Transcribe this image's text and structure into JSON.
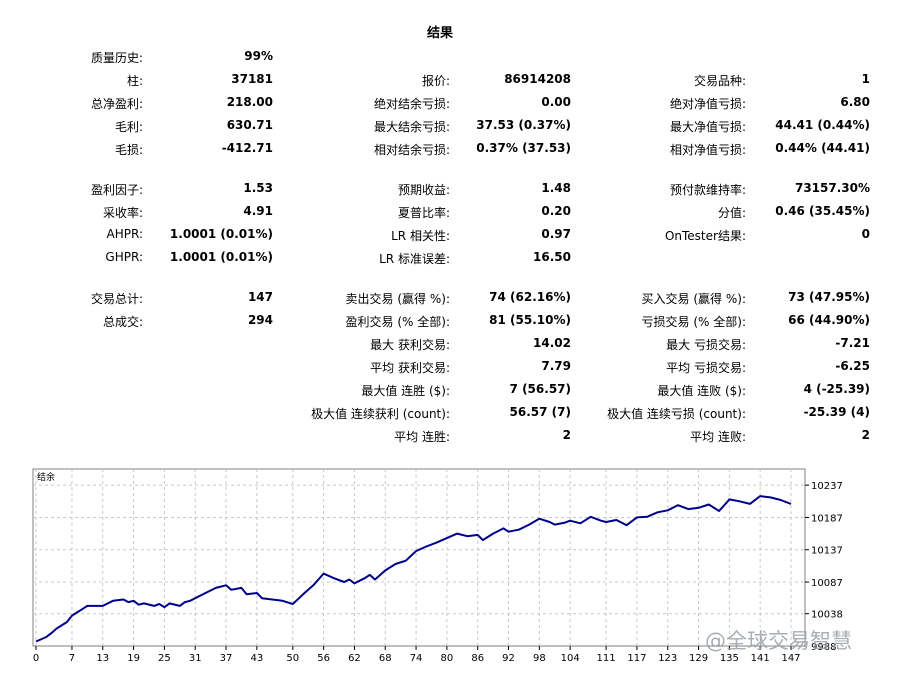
{
  "report": {
    "title": "结果",
    "stats": [
      {
        "label": "质量历史:",
        "value": "99%"
      },
      {
        "label": "柱:",
        "value": "37181"
      },
      {
        "label": "报价:",
        "value": "86914208"
      },
      {
        "label": "交易品种:",
        "value": "1"
      },
      {
        "label": "总净盈利:",
        "value": "218.00"
      },
      {
        "label": "绝对结余亏损:",
        "value": "0.00"
      },
      {
        "label": "绝对净值亏损:",
        "value": "6.80"
      },
      {
        "label": "毛利:",
        "value": "630.71"
      },
      {
        "label": "最大结余亏损:",
        "value": "37.53 (0.37%)"
      },
      {
        "label": "最大净值亏损:",
        "value": "44.41 (0.44%)"
      },
      {
        "label": "毛损:",
        "value": "-412.71"
      },
      {
        "label": "相对结余亏损:",
        "value": "0.37% (37.53)"
      },
      {
        "label": "相对净值亏损:",
        "value": "0.44% (44.41)"
      },
      {
        "label": "盈利因子:",
        "value": "1.53"
      },
      {
        "label": "预期收益:",
        "value": "1.48"
      },
      {
        "label": "预付款维持率:",
        "value": "73157.30%"
      },
      {
        "label": "采收率:",
        "value": "4.91"
      },
      {
        "label": "夏普比率:",
        "value": "0.20"
      },
      {
        "label": "分值:",
        "value": "0.46 (35.45%)"
      },
      {
        "label": "AHPR:",
        "value": "1.0001 (0.01%)"
      },
      {
        "label": "LR 相关性:",
        "value": "0.97"
      },
      {
        "label": "OnTester结果:",
        "value": "0"
      },
      {
        "label": "GHPR:",
        "value": "1.0001 (0.01%)"
      },
      {
        "label": "LR 标准误差:",
        "value": "16.50"
      },
      {
        "label": "交易总计:",
        "value": "147"
      },
      {
        "label": "卖出交易 (赢得 %):",
        "value": "74 (62.16%)"
      },
      {
        "label": "买入交易 (赢得 %):",
        "value": "73 (47.95%)"
      },
      {
        "label": "总成交:",
        "value": "294"
      },
      {
        "label": "盈利交易 (% 全部):",
        "value": "81 (55.10%)"
      },
      {
        "label": "亏损交易 (% 全部):",
        "value": "66 (44.90%)"
      },
      {
        "label": "最大 获利交易:",
        "value": "14.02"
      },
      {
        "label": "最大 亏损交易:",
        "value": "-7.21"
      },
      {
        "label": "平均 获利交易:",
        "value": "7.79"
      },
      {
        "label": "平均 亏损交易:",
        "value": "-6.25"
      },
      {
        "label": "最大值 连胜 ($):",
        "value": "7 (56.57)"
      },
      {
        "label": "最大值 连败 ($):",
        "value": "4 (-25.39)"
      },
      {
        "label": "极大值 连续获利 (count):",
        "value": "56.57 (7)"
      },
      {
        "label": "极大值 连续亏损 (count):",
        "value": "-25.39 (4)"
      },
      {
        "label": "平均 连胜:",
        "value": "2"
      },
      {
        "label": "平均 连败:",
        "value": "2"
      }
    ]
  },
  "watermark": "@全球交易智慧",
  "chart_data": {
    "type": "line",
    "title": "结余",
    "x_ticks": [
      0,
      7,
      13,
      19,
      25,
      31,
      37,
      43,
      50,
      56,
      62,
      68,
      74,
      80,
      86,
      92,
      98,
      104,
      111,
      117,
      123,
      129,
      135,
      141,
      147
    ],
    "y_ticks": [
      10038,
      10087,
      10137,
      10187,
      10237
    ],
    "y_bottom_label": "9988",
    "xlim": [
      0,
      150
    ],
    "ylim": [
      9988,
      10262
    ],
    "grid": true,
    "line_color": "#00008b",
    "series": [
      {
        "x": [
          0,
          2,
          3,
          4,
          6,
          7,
          9,
          10,
          13,
          15,
          17,
          18,
          19,
          20,
          21,
          23,
          24,
          25,
          26,
          28,
          29,
          30,
          31,
          33,
          35,
          37,
          38,
          40,
          41,
          43,
          44,
          46,
          48,
          50,
          52,
          54,
          56,
          58,
          60,
          61,
          62,
          64,
          65,
          66,
          68,
          70,
          72,
          74,
          76,
          78,
          80,
          82,
          84,
          86,
          87,
          89,
          91,
          92,
          94,
          96,
          98,
          100,
          101,
          103,
          104,
          106,
          108,
          110,
          111,
          113,
          115,
          117,
          119,
          121,
          123,
          125,
          127,
          129,
          131,
          133,
          135,
          137,
          139,
          141,
          143,
          145,
          147
        ],
        "y": [
          9995,
          10002,
          10008,
          10015,
          10025,
          10035,
          10045,
          10050,
          10050,
          10058,
          10060,
          10056,
          10058,
          10052,
          10054,
          10050,
          10053,
          10048,
          10054,
          10050,
          10056,
          10058,
          10062,
          10070,
          10078,
          10082,
          10075,
          10078,
          10068,
          10070,
          10062,
          10060,
          10058,
          10053,
          10068,
          10082,
          10100,
          10093,
          10087,
          10091,
          10085,
          10093,
          10098,
          10091,
          10105,
          10115,
          10120,
          10135,
          10142,
          10148,
          10155,
          10162,
          10158,
          10160,
          10152,
          10162,
          10170,
          10165,
          10168,
          10176,
          10185,
          10180,
          10176,
          10179,
          10182,
          10178,
          10188,
          10182,
          10180,
          10183,
          10175,
          10187,
          10188,
          10195,
          10198,
          10206,
          10200,
          10202,
          10207,
          10197,
          10215,
          10212,
          10208,
          10220,
          10218,
          10214,
          10208
        ]
      }
    ]
  }
}
